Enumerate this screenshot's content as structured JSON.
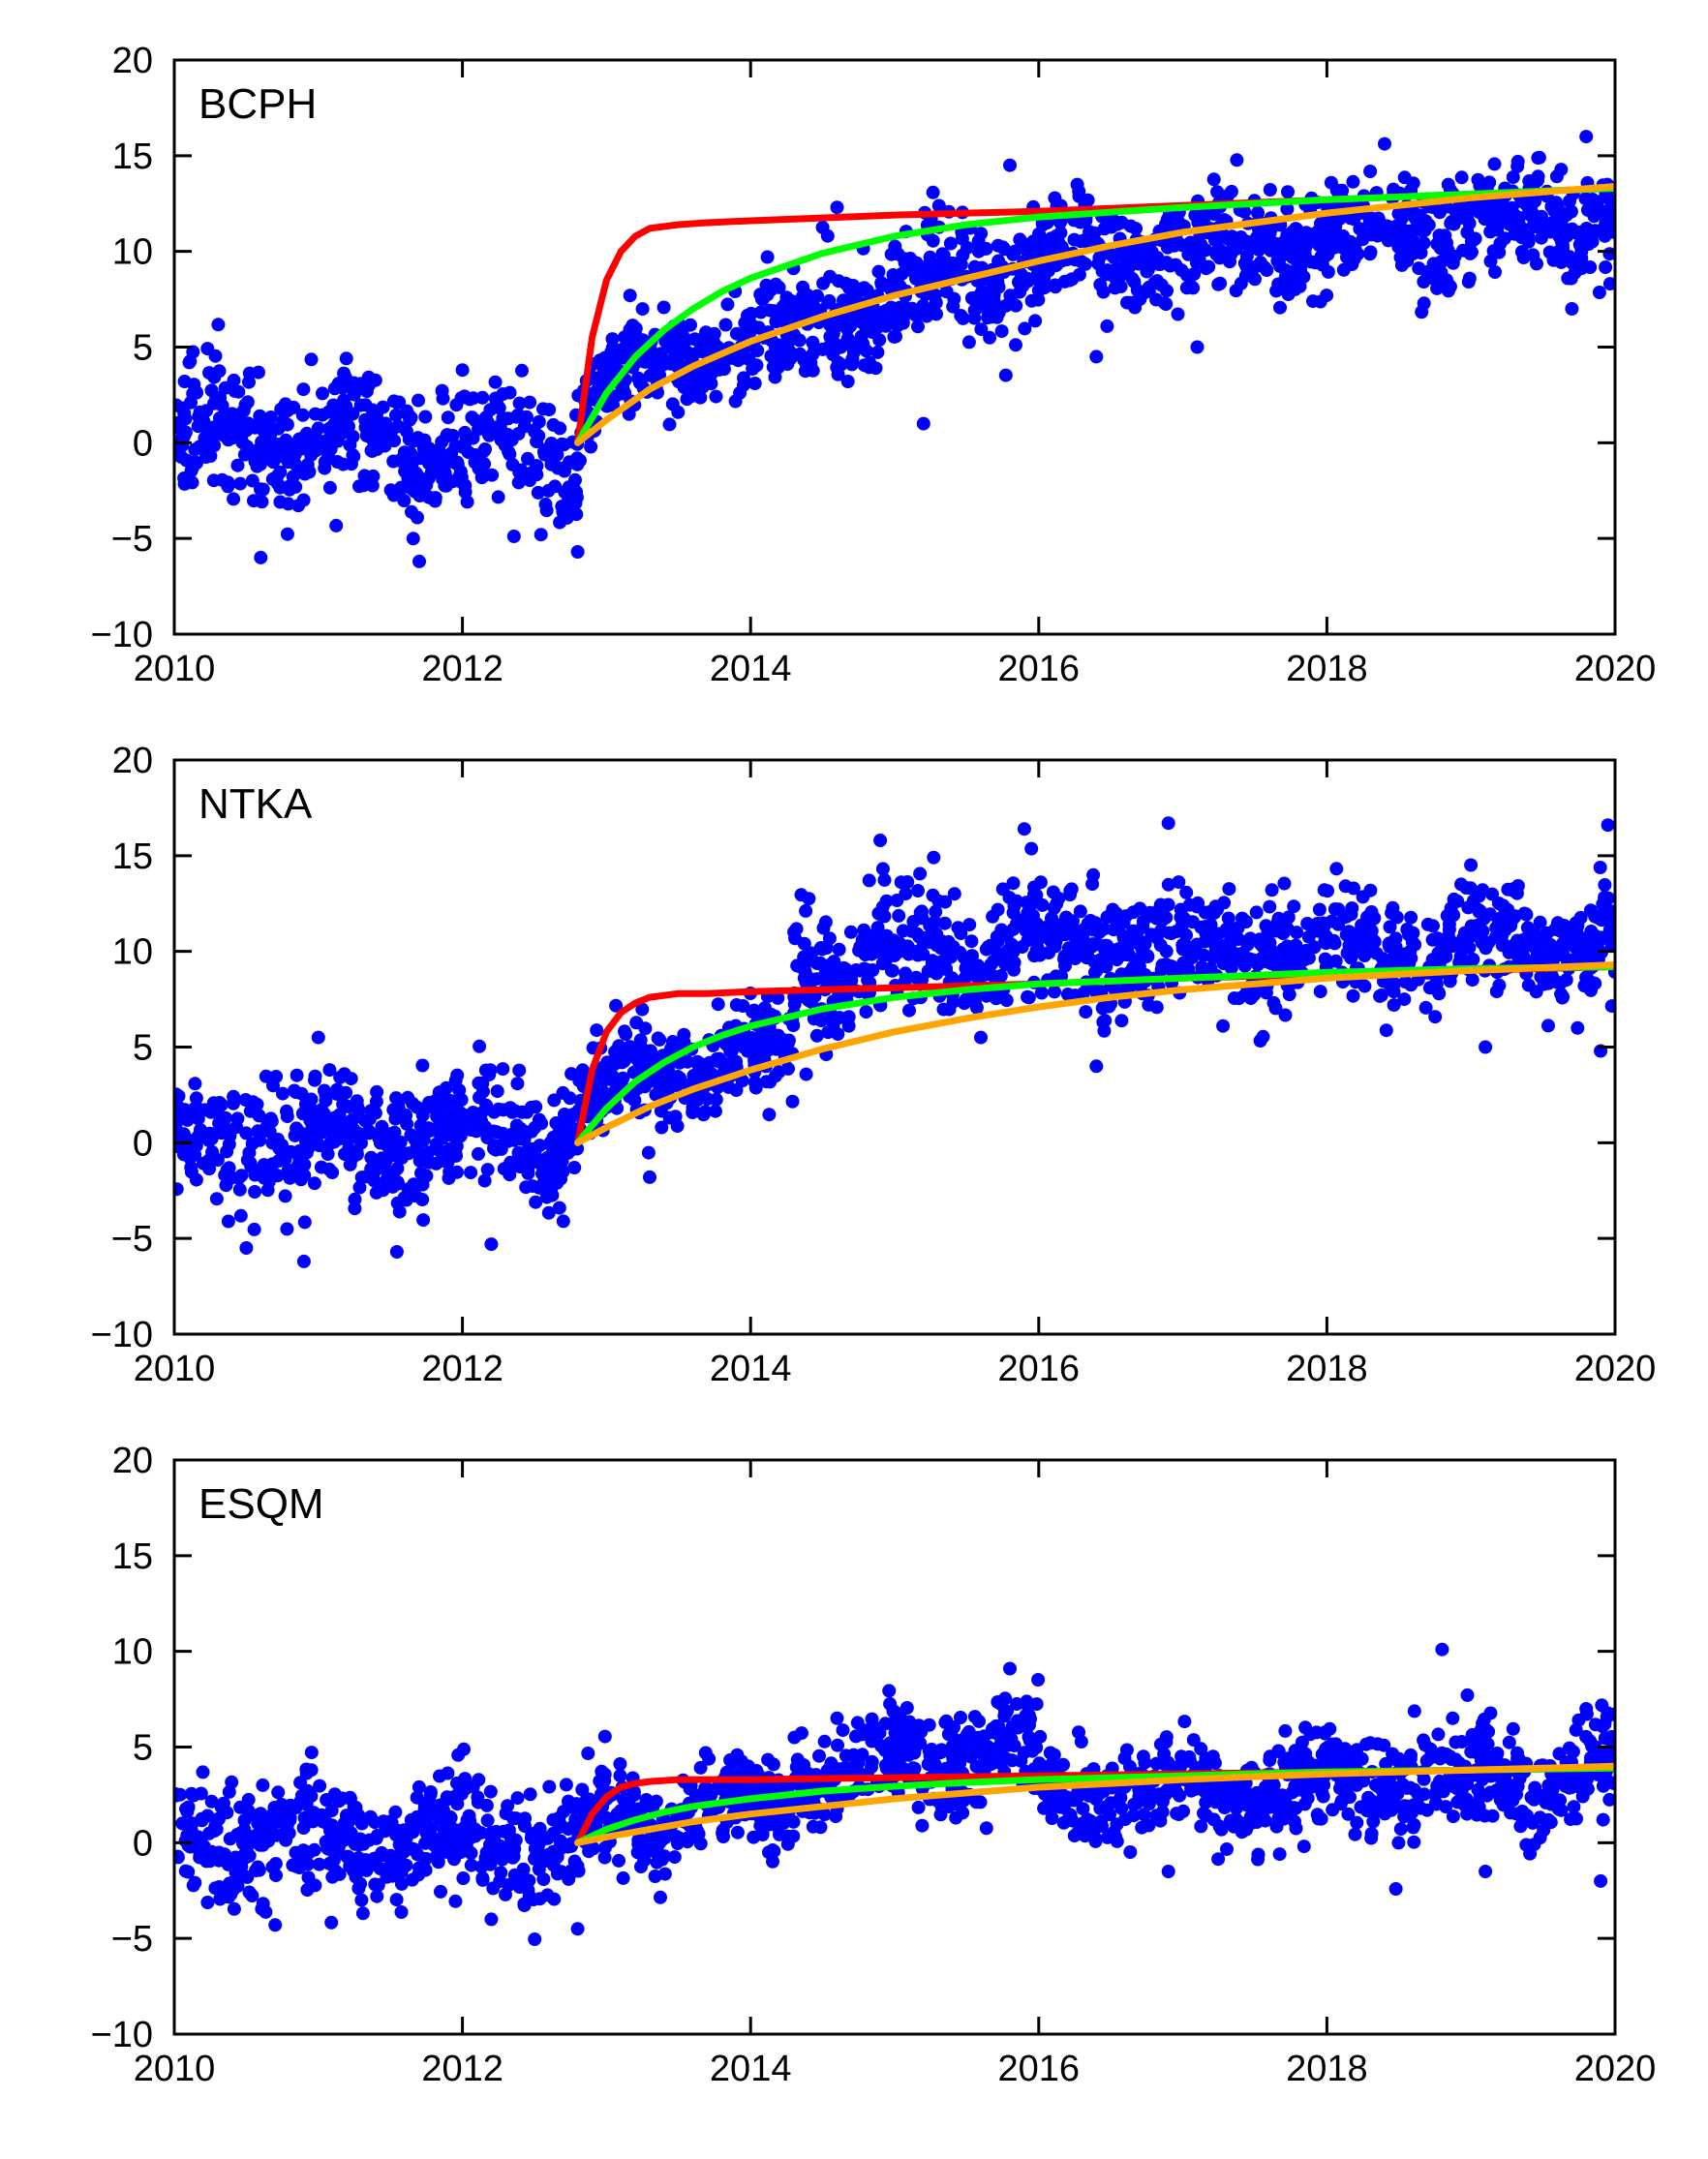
{
  "chart_data": [
    {
      "type": "scatter",
      "label": "BCPH",
      "xlim": [
        2010,
        2020
      ],
      "ylim": [
        -10,
        20
      ],
      "x_ticks": [
        2010,
        2012,
        2014,
        2016,
        2018,
        2020
      ],
      "y_ticks": [
        -10,
        -5,
        0,
        5,
        10,
        15,
        20
      ],
      "grid": false,
      "observations": {
        "color": "#0000ff",
        "segments": [
          {
            "x_start": 2010.0,
            "x_end": 2012.8,
            "y_start": 0.5,
            "y_end": -0.5,
            "spread": 1.5,
            "approx_count": 520
          },
          {
            "x_start": 2012.8,
            "x_end": 2014.0,
            "y_start": 2.5,
            "y_end": 5.5,
            "spread": 1.2,
            "approx_count": 240
          },
          {
            "x_start": 2014.0,
            "x_end": 2016.0,
            "y_start": 5.5,
            "y_end": 9.5,
            "spread": 1.5,
            "approx_count": 360
          },
          {
            "x_start": 2016.0,
            "x_end": 2020.0,
            "y_start": 9.5,
            "y_end": 12.0,
            "spread": 1.4,
            "approx_count": 700
          }
        ],
        "notable_points": [
          {
            "x": 2010.6,
            "y": -6.0
          },
          {
            "x": 2011.7,
            "y": -6.2
          },
          {
            "x": 2012.0,
            "y": 3.8
          },
          {
            "x": 2012.8,
            "y": -5.7
          },
          {
            "x": 2014.6,
            "y": 12.3
          },
          {
            "x": 2015.2,
            "y": 1.0
          },
          {
            "x": 2015.8,
            "y": 14.5
          },
          {
            "x": 2016.4,
            "y": 4.5
          },
          {
            "x": 2017.1,
            "y": 5.0
          },
          {
            "x": 2019.7,
            "y": 7.0
          },
          {
            "x": 2019.8,
            "y": 16.0
          }
        ]
      },
      "series": [
        {
          "color": "#ff0000",
          "x": [
            2012.8,
            2012.9,
            2013.0,
            2013.1,
            2013.2,
            2013.3,
            2013.5,
            2013.7,
            2014.0,
            2015.0,
            2016.0,
            2017.0,
            2018.0,
            2019.0,
            2020.0
          ],
          "y": [
            0,
            5.5,
            8.5,
            10.0,
            10.8,
            11.2,
            11.4,
            11.5,
            11.6,
            11.9,
            12.1,
            12.4,
            12.7,
            13.0,
            13.3
          ]
        },
        {
          "color": "#00ff00",
          "x": [
            2012.8,
            2013.0,
            2013.2,
            2013.4,
            2013.6,
            2013.8,
            2014.0,
            2014.5,
            2015.0,
            2015.5,
            2016.0,
            2017.0,
            2018.0,
            2019.0,
            2020.0
          ],
          "y": [
            0,
            2.6,
            4.5,
            5.9,
            7.0,
            7.9,
            8.6,
            9.9,
            10.8,
            11.4,
            11.8,
            12.3,
            12.7,
            13.0,
            13.3
          ]
        },
        {
          "color": "#ffa500",
          "x": [
            2012.8,
            2013.0,
            2013.3,
            2013.6,
            2014.0,
            2014.5,
            2015.0,
            2015.5,
            2016.0,
            2016.5,
            2017.0,
            2018.0,
            2019.0,
            2020.0
          ],
          "y": [
            0,
            1.2,
            2.8,
            4.0,
            5.3,
            6.6,
            7.7,
            8.6,
            9.5,
            10.3,
            11.0,
            12.0,
            12.8,
            13.4
          ]
        }
      ]
    },
    {
      "type": "scatter",
      "label": "NTKA",
      "xlim": [
        2010,
        2020
      ],
      "ylim": [
        -10,
        20
      ],
      "x_ticks": [
        2010,
        2012,
        2014,
        2016,
        2018,
        2020
      ],
      "y_ticks": [
        -10,
        -5,
        0,
        5,
        10,
        15,
        20
      ],
      "grid": false,
      "observations": {
        "color": "#0000ff",
        "segments": [
          {
            "x_start": 2010.0,
            "x_end": 2012.8,
            "y_start": 0.0,
            "y_end": 0.5,
            "spread": 1.7,
            "approx_count": 520
          },
          {
            "x_start": 2012.8,
            "x_end": 2014.3,
            "y_start": 2.5,
            "y_end": 5.0,
            "spread": 1.3,
            "approx_count": 280
          },
          {
            "x_start": 2014.3,
            "x_end": 2016.0,
            "y_start": 9.0,
            "y_end": 10.5,
            "spread": 1.6,
            "approx_count": 320
          },
          {
            "x_start": 2016.0,
            "x_end": 2020.0,
            "y_start": 10.0,
            "y_end": 10.5,
            "spread": 1.5,
            "approx_count": 700
          }
        ],
        "notable_points": [
          {
            "x": 2010.5,
            "y": -5.5
          },
          {
            "x": 2010.9,
            "y": -6.2
          },
          {
            "x": 2012.2,
            "y": -5.3
          },
          {
            "x": 2012.7,
            "y": -4.1
          },
          {
            "x": 2013.3,
            "y": -1.8
          },
          {
            "x": 2014.9,
            "y": 15.8
          },
          {
            "x": 2015.9,
            "y": 16.4
          },
          {
            "x": 2016.4,
            "y": 4.0
          },
          {
            "x": 2016.9,
            "y": 16.7
          },
          {
            "x": 2019.1,
            "y": 5.0
          },
          {
            "x": 2019.9,
            "y": 4.8
          },
          {
            "x": 2019.95,
            "y": 16.6
          }
        ]
      },
      "series": [
        {
          "color": "#ff0000",
          "x": [
            2012.8,
            2012.9,
            2013.0,
            2013.1,
            2013.2,
            2013.3,
            2013.5,
            2013.7,
            2014.0,
            2015.0,
            2016.0,
            2017.0,
            2018.0,
            2019.0,
            2020.0
          ],
          "y": [
            0,
            3.8,
            5.8,
            6.8,
            7.3,
            7.6,
            7.8,
            7.8,
            7.9,
            8.1,
            8.3,
            8.6,
            8.8,
            9.0,
            9.2
          ]
        },
        {
          "color": "#00ff00",
          "x": [
            2012.8,
            2013.0,
            2013.2,
            2013.4,
            2013.6,
            2013.8,
            2014.0,
            2014.5,
            2015.0,
            2015.5,
            2016.0,
            2017.0,
            2018.0,
            2019.0,
            2020.0
          ],
          "y": [
            0,
            1.8,
            3.2,
            4.2,
            5.0,
            5.6,
            6.1,
            7.0,
            7.6,
            8.0,
            8.3,
            8.6,
            8.9,
            9.1,
            9.2
          ]
        },
        {
          "color": "#ffa500",
          "x": [
            2012.8,
            2013.0,
            2013.3,
            2013.6,
            2014.0,
            2014.5,
            2015.0,
            2015.5,
            2016.0,
            2016.5,
            2017.0,
            2018.0,
            2019.0,
            2020.0
          ],
          "y": [
            0,
            0.8,
            1.9,
            2.8,
            3.8,
            4.9,
            5.8,
            6.5,
            7.1,
            7.6,
            8.0,
            8.6,
            9.0,
            9.3
          ]
        }
      ]
    },
    {
      "type": "scatter",
      "label": "ESQM",
      "xlim": [
        2010,
        2020
      ],
      "ylim": [
        -10,
        20
      ],
      "x_ticks": [
        2010,
        2012,
        2014,
        2016,
        2018,
        2020
      ],
      "y_ticks": [
        -10,
        -5,
        0,
        5,
        10,
        15,
        20
      ],
      "grid": false,
      "observations": {
        "color": "#0000ff",
        "segments": [
          {
            "x_start": 2010.0,
            "x_end": 2012.8,
            "y_start": 0.5,
            "y_end": 0.0,
            "spread": 1.5,
            "approx_count": 520
          },
          {
            "x_start": 2012.8,
            "x_end": 2014.3,
            "y_start": 1.0,
            "y_end": 2.0,
            "spread": 1.2,
            "approx_count": 280
          },
          {
            "x_start": 2014.3,
            "x_end": 2016.0,
            "y_start": 3.5,
            "y_end": 5.0,
            "spread": 1.3,
            "approx_count": 320
          },
          {
            "x_start": 2016.0,
            "x_end": 2020.0,
            "y_start": 2.5,
            "y_end": 3.5,
            "spread": 1.3,
            "approx_count": 700
          }
        ],
        "notable_points": [
          {
            "x": 2010.7,
            "y": -4.3
          },
          {
            "x": 2011.3,
            "y": -3.0
          },
          {
            "x": 2012.2,
            "y": -4.0
          },
          {
            "x": 2012.8,
            "y": -4.5
          },
          {
            "x": 2014.6,
            "y": 6.5
          },
          {
            "x": 2015.8,
            "y": 9.1
          },
          {
            "x": 2016.9,
            "y": -1.5
          },
          {
            "x": 2018.8,
            "y": 10.1
          },
          {
            "x": 2019.1,
            "y": -1.5
          },
          {
            "x": 2019.9,
            "y": -2.0
          },
          {
            "x": 2019.8,
            "y": 7.0
          }
        ]
      },
      "series": [
        {
          "color": "#ff0000",
          "x": [
            2012.8,
            2012.9,
            2013.0,
            2013.1,
            2013.2,
            2013.3,
            2013.5,
            2013.7,
            2014.0,
            2015.0,
            2016.0,
            2017.0,
            2018.0,
            2019.0,
            2020.0
          ],
          "y": [
            0,
            1.5,
            2.4,
            2.9,
            3.1,
            3.2,
            3.3,
            3.3,
            3.3,
            3.4,
            3.5,
            3.6,
            3.7,
            3.8,
            3.9
          ]
        },
        {
          "color": "#00ff00",
          "x": [
            2012.8,
            2013.0,
            2013.2,
            2013.4,
            2013.6,
            2013.8,
            2014.0,
            2014.5,
            2015.0,
            2015.5,
            2016.0,
            2017.0,
            2018.0,
            2019.0,
            2020.0
          ],
          "y": [
            0,
            0.7,
            1.2,
            1.6,
            1.9,
            2.1,
            2.3,
            2.7,
            2.95,
            3.15,
            3.3,
            3.5,
            3.7,
            3.8,
            3.9
          ]
        },
        {
          "color": "#ffa500",
          "x": [
            2012.8,
            2013.0,
            2013.3,
            2013.6,
            2014.0,
            2014.5,
            2015.0,
            2015.5,
            2016.0,
            2016.5,
            2017.0,
            2018.0,
            2019.0,
            2020.0
          ],
          "y": [
            0,
            0.3,
            0.7,
            1.1,
            1.5,
            1.9,
            2.3,
            2.6,
            2.9,
            3.1,
            3.3,
            3.6,
            3.8,
            4.0
          ]
        }
      ]
    }
  ]
}
